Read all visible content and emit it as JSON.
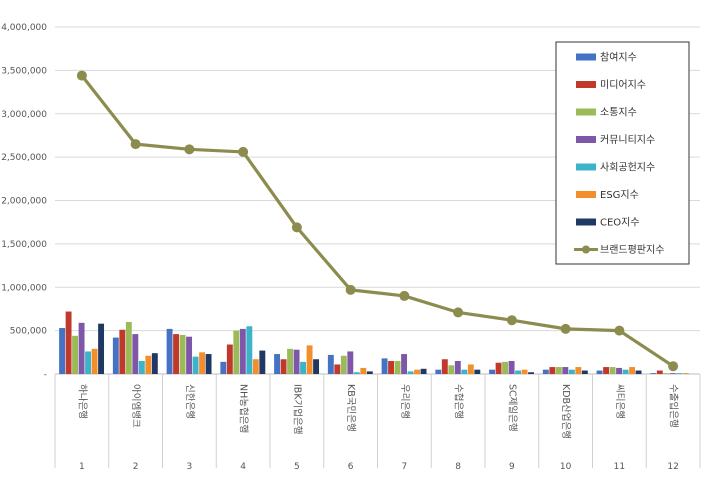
{
  "chart_data": {
    "type": "bar",
    "categories": [
      "하나은행",
      "아이엠뱅크",
      "신한은행",
      "NH농협은행",
      "IBK기업은행",
      "KB국민은행",
      "우리은행",
      "수협은행",
      "SC제일은행",
      "KDB산업은행",
      "씨티은행",
      "수출입은행"
    ],
    "ranks": [
      "1",
      "2",
      "3",
      "4",
      "5",
      "6",
      "7",
      "8",
      "9",
      "10",
      "11",
      "12"
    ],
    "ylim": [
      0,
      4000000
    ],
    "yticks": [
      "-",
      "500,000",
      "1,000,000",
      "1,500,000",
      "2,000,000",
      "2,500,000",
      "3,000,000",
      "3,500,000",
      "4,000,000"
    ],
    "grid": true,
    "legend_position": "top-right",
    "series": [
      {
        "name": "참여지수",
        "color": "#4472c4",
        "kind": "bar",
        "values": [
          530000,
          420000,
          520000,
          140000,
          230000,
          220000,
          180000,
          50000,
          50000,
          50000,
          40000,
          10000
        ]
      },
      {
        "name": "미디어지수",
        "color": "#c0392b",
        "kind": "bar",
        "values": [
          720000,
          510000,
          460000,
          340000,
          170000,
          110000,
          150000,
          170000,
          130000,
          80000,
          80000,
          40000
        ]
      },
      {
        "name": "소통지수",
        "color": "#9bbb59",
        "kind": "bar",
        "values": [
          440000,
          600000,
          450000,
          500000,
          290000,
          210000,
          150000,
          100000,
          140000,
          80000,
          80000,
          10000
        ]
      },
      {
        "name": "커뮤니티지수",
        "color": "#7e57a8",
        "kind": "bar",
        "values": [
          590000,
          460000,
          430000,
          520000,
          280000,
          260000,
          230000,
          150000,
          150000,
          80000,
          70000,
          10000
        ]
      },
      {
        "name": "사회공헌지수",
        "color": "#3bb3c8",
        "kind": "bar",
        "values": [
          260000,
          150000,
          200000,
          550000,
          140000,
          20000,
          30000,
          50000,
          40000,
          50000,
          50000,
          10000
        ]
      },
      {
        "name": "ESG지수",
        "color": "#f28e2b",
        "kind": "bar",
        "values": [
          290000,
          210000,
          250000,
          170000,
          330000,
          70000,
          50000,
          110000,
          50000,
          80000,
          80000,
          10000
        ]
      },
      {
        "name": "CEO지수",
        "color": "#1f3864",
        "kind": "bar",
        "values": [
          580000,
          240000,
          230000,
          270000,
          170000,
          30000,
          60000,
          50000,
          20000,
          40000,
          40000,
          0
        ]
      },
      {
        "name": "브랜드평판지수",
        "color": "#8c8c4e",
        "kind": "line",
        "values": [
          3440000,
          2650000,
          2590000,
          2560000,
          1690000,
          970000,
          900000,
          710000,
          620000,
          520000,
          500000,
          90000
        ]
      }
    ]
  }
}
